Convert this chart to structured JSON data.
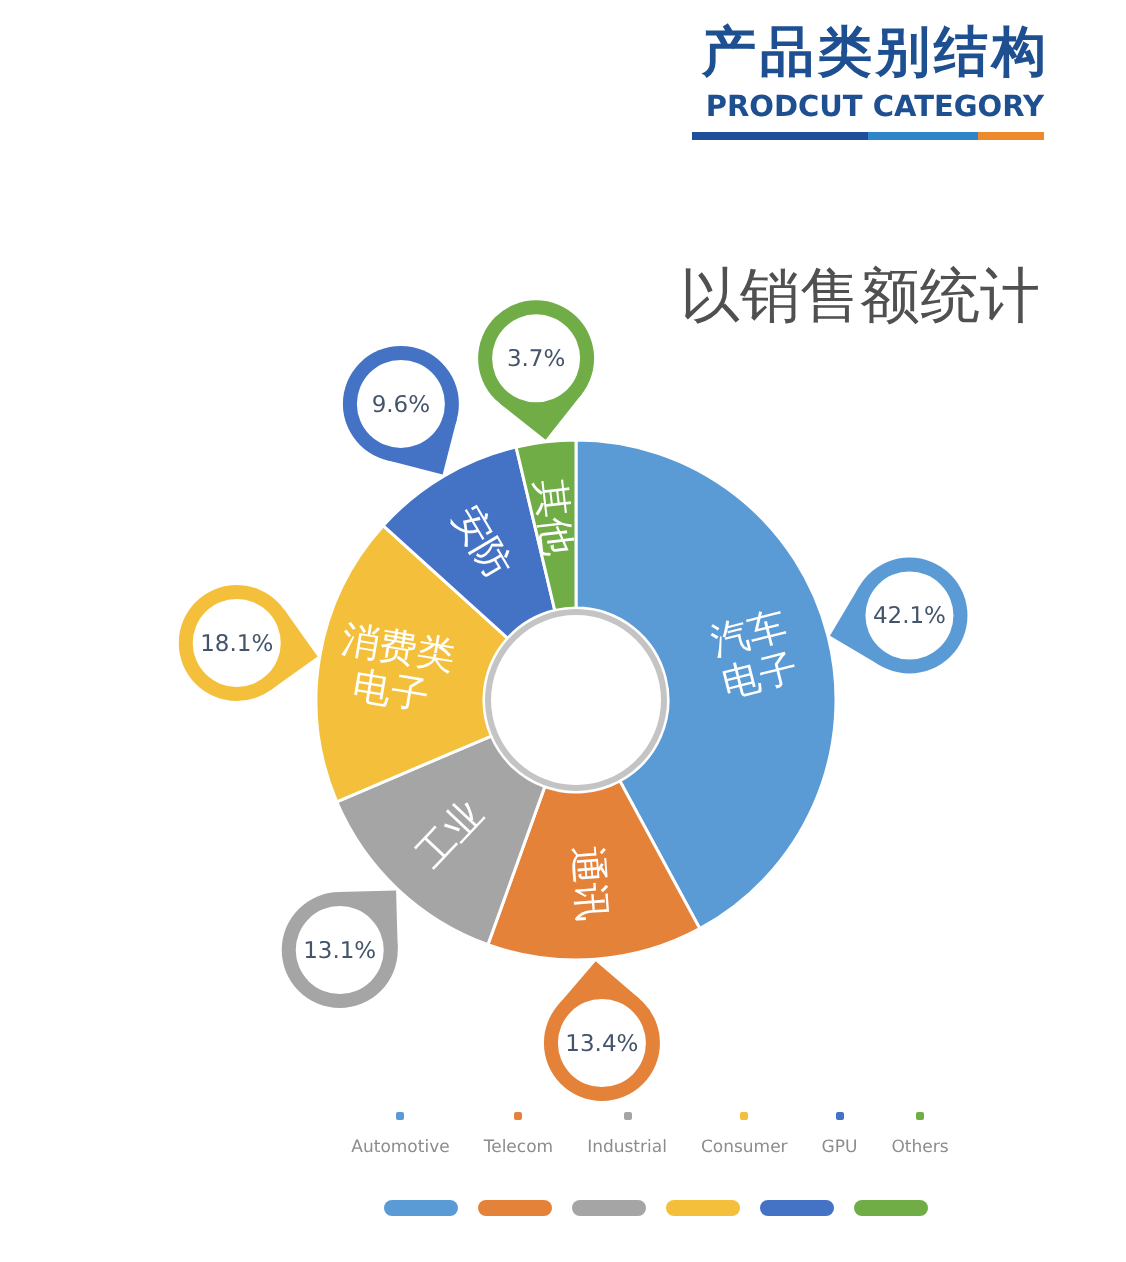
{
  "chart_data": {
    "type": "donut",
    "title": "产品类别结构",
    "subtitle": "PRODCUT CATEGORY",
    "categories": [
      "Automotive",
      "Telecom",
      "Industrial",
      "Consumer",
      "GPU",
      "Others"
    ],
    "values": [
      42.1,
      13.4,
      13.1,
      18.1,
      9.6,
      3.7
    ],
    "colors": [
      "#5b9bd5",
      "#e5823a",
      "#a5a5a5",
      "#f4c03c",
      "#4472c4",
      "#70ad47"
    ],
    "value_labels": [
      "42.1%",
      "13.4%",
      "13.1%",
      "18.1%",
      "9.6%",
      "3.7%"
    ],
    "annotations": [
      "以销售额统计",
      {
        "text": "汽车电子",
        "x": "Automotive"
      },
      {
        "text": "通讯",
        "x": "Telecom"
      },
      {
        "text": "工业",
        "x": "Industrial"
      },
      {
        "text": "消费类电子",
        "x": "Consumer"
      },
      {
        "text": "安防",
        "x": "GPU"
      },
      {
        "text": "其他",
        "x": "Others"
      }
    ],
    "legend": "bottom"
  }
}
